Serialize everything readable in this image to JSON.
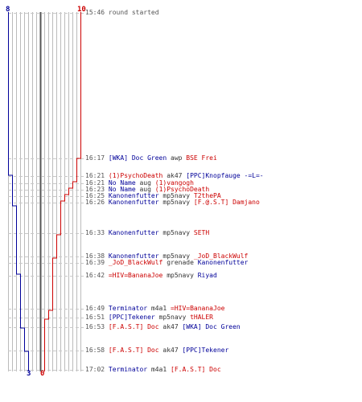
{
  "scores": {
    "blue_top": "8",
    "red_top": "10",
    "blue_bottom": "3",
    "red_bottom": "0"
  },
  "colors": {
    "blue_team": "#000099",
    "red_team": "#cc0000",
    "grid": "#bbbbbb",
    "center": "#555555"
  },
  "events": [
    {
      "time": "15:46",
      "killer": "",
      "weapon": "round started",
      "victim": "",
      "kt": "note",
      "vt": "note"
    },
    {
      "time": "16:17",
      "killer": "[WKA] Doc Green",
      "weapon": "awp",
      "victim": "BSE Frei",
      "kt": "blue",
      "vt": "red"
    },
    {
      "time": "16:21",
      "killer": "(1)PsychoDeath",
      "weapon": "ak47",
      "victim": "[PPC]Knopfauge -=L=-",
      "kt": "red",
      "vt": "blue"
    },
    {
      "time": "16:21",
      "killer": "No Name",
      "weapon": "aug",
      "victim": "(1)vangogh",
      "kt": "blue",
      "vt": "red"
    },
    {
      "time": "16:23",
      "killer": "No Name",
      "weapon": "aug",
      "victim": "(1)PsychoDeath",
      "kt": "blue",
      "vt": "red"
    },
    {
      "time": "16:25",
      "killer": "Kanonenfutter",
      "weapon": "mp5navy",
      "victim": "T2thePA",
      "kt": "blue",
      "vt": "red"
    },
    {
      "time": "16:26",
      "killer": "Kanonenfutter",
      "weapon": "mp5navy",
      "victim": "[F.@.S.T] Damjano",
      "kt": "blue",
      "vt": "red"
    },
    {
      "time": "16:33",
      "killer": "Kanonenfutter",
      "weapon": "mp5navy",
      "victim": "SETH",
      "kt": "blue",
      "vt": "red"
    },
    {
      "time": "16:38",
      "killer": "Kanonenfutter",
      "weapon": "mp5navy",
      "victim": "_JoD_BlackWulf",
      "kt": "blue",
      "vt": "red"
    },
    {
      "time": "16:39",
      "killer": "_JoD_BlackWulf",
      "weapon": "grenade",
      "victim": "Kanonenfutter",
      "kt": "red",
      "vt": "blue"
    },
    {
      "time": "16:42",
      "killer": "=HIV=BananaJoe",
      "weapon": "mp5navy",
      "victim": "Riyad",
      "kt": "red",
      "vt": "blue"
    },
    {
      "time": "16:49",
      "killer": "Terminator",
      "weapon": "m4a1",
      "victim": "=HIV=BananaJoe",
      "kt": "blue",
      "vt": "red"
    },
    {
      "time": "16:51",
      "killer": "[PPC]Tekener",
      "weapon": "mp5navy",
      "victim": "tHALER",
      "kt": "blue",
      "vt": "red"
    },
    {
      "time": "16:53",
      "killer": "[F.A.S.T] Doc",
      "weapon": "ak47",
      "victim": "[WKA] Doc Green",
      "kt": "red",
      "vt": "blue"
    },
    {
      "time": "16:58",
      "killer": "[F.A.S.T] Doc",
      "weapon": "ak47",
      "victim": "[PPC]Tekener",
      "kt": "red",
      "vt": "blue"
    },
    {
      "time": "17:02",
      "killer": "Terminator",
      "weapon": "m4a1",
      "victim": "[F.A.S.T] Doc",
      "kt": "blue",
      "vt": "red"
    }
  ]
}
